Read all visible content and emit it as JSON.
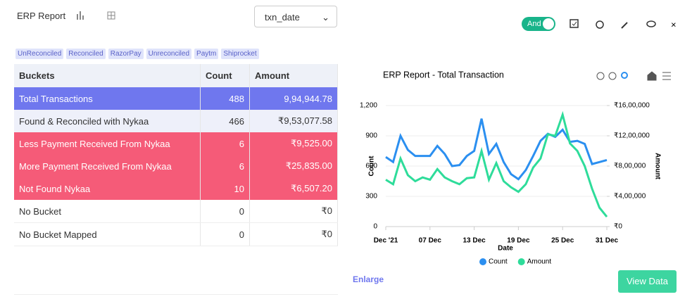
{
  "header": {
    "title": "ERP Report",
    "select": "txn_date",
    "toggle": "And"
  },
  "tags": [
    "UnReconciled",
    "Reconciled",
    "RazorPay",
    "Unreconciled",
    "Paytm",
    "Shiprocket"
  ],
  "table": {
    "columns": [
      "Buckets",
      "Count",
      "Amount"
    ],
    "rows": [
      [
        "Total  Transactions",
        488,
        "9,94,944.78"
      ],
      [
        "Found & Reconciled with Nykaa",
        466,
        "₹9,53,077.58"
      ],
      [
        "Less Payment Received From Nykaa",
        6,
        "₹9,525.00"
      ],
      [
        "More Payment Received From Nykaa",
        6,
        "₹25,835.00"
      ],
      [
        "Not Found Nykaa",
        10,
        "₹6,507.20"
      ],
      [
        "No Bucket",
        0,
        "₹0"
      ],
      [
        "No Bucket Mapped",
        0,
        "₹0"
      ]
    ]
  },
  "chart_data": {
    "type": "line",
    "title": "ERP Report - Total Transaction",
    "x_label": "Date",
    "y_label": "Count",
    "y2_label": "Amount",
    "categories": [
      "Dec '21",
      null,
      null,
      null,
      null,
      null,
      "07 Dec",
      null,
      null,
      null,
      null,
      null,
      "13 Dec",
      null,
      null,
      null,
      null,
      null,
      "19 Dec",
      null,
      null,
      null,
      null,
      null,
      "25 Dec",
      null,
      null,
      null,
      null,
      null,
      "31 Dec"
    ],
    "ylim": [
      0,
      1200
    ],
    "yticks": [
      0,
      300,
      600,
      900,
      {
        "value": 1200,
        "label": "1,200"
      }
    ],
    "y2lim": [
      0,
      1600000
    ],
    "y2ticks": [
      {
        "value": 0,
        "label": "₹0"
      },
      {
        "value": 400000,
        "label": "₹4,00,000"
      },
      {
        "value": 800000,
        "label": "₹8,00,000"
      },
      {
        "value": 1200000,
        "label": "₹12,00,000"
      },
      {
        "value": 1600000,
        "label": "₹16,00,000"
      }
    ],
    "series": [
      {
        "name": "Count",
        "color": "#2b8ff0",
        "values": [
          690,
          640,
          900,
          760,
          700,
          700,
          700,
          800,
          720,
          600,
          610,
          700,
          750,
          1070,
          720,
          820,
          640,
          520,
          470,
          560,
          700,
          850,
          920,
          890,
          960,
          840,
          850,
          820,
          620,
          640,
          660
        ]
      },
      {
        "name": "Amount",
        "color": "#2edc9a",
        "axis": "y2",
        "values": [
          620000,
          560000,
          900000,
          680000,
          600000,
          650000,
          620000,
          760000,
          650000,
          600000,
          560000,
          640000,
          650000,
          1000000,
          620000,
          840000,
          600000,
          520000,
          460000,
          560000,
          780000,
          900000,
          1220000,
          1200000,
          1480000,
          1100000,
          1000000,
          800000,
          500000,
          250000,
          130000
        ]
      }
    ]
  },
  "links": {
    "enlarge": "Enlarge",
    "view_data": "View Data"
  }
}
